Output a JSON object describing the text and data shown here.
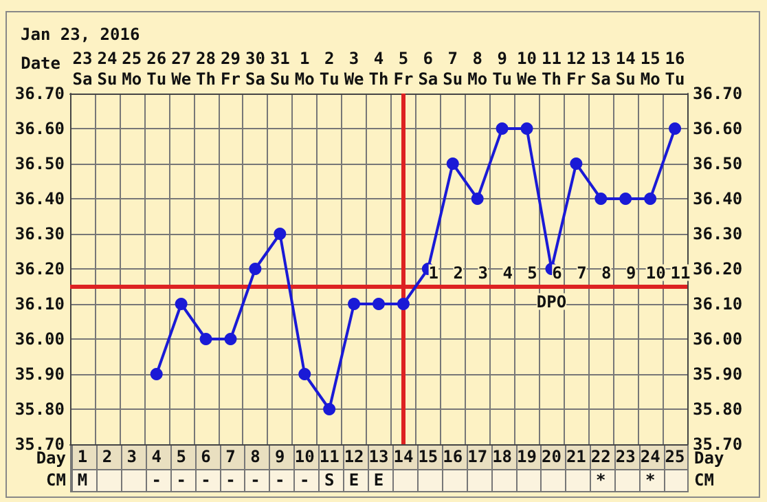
{
  "chart_data": [
    {
      "type": "line",
      "title": "Jan 23, 2016",
      "xlabel": "Date",
      "x2label": "Day",
      "categories": [
        "23\nSa",
        "24\nSu",
        "25\nMo",
        "26\nTu",
        "27\nWe",
        "28\nTh",
        "29\nFr",
        "30\nSa",
        "31\nSu",
        "1\nMo",
        "2\nTu",
        "3\nWe",
        "4\nTh",
        "5\nFr",
        "6\nSa",
        "7\nSu",
        "8\nMo",
        "9\nTu",
        "10\nWe",
        "11\nTh",
        "12\nFr",
        "13\nSa",
        "14\nSu",
        "15\nMo",
        "16\nTu"
      ],
      "series": [
        {
          "color": "#1a1ad6",
          "values": [
            null,
            null,
            null,
            35.9,
            36.1,
            36.0,
            36.0,
            36.2,
            36.3,
            35.9,
            35.8,
            36.1,
            36.1,
            36.1,
            36.2,
            36.5,
            36.4,
            36.6,
            36.6,
            36.2,
            36.5,
            36.4,
            36.4,
            36.4,
            36.6
          ]
        }
      ],
      "ylim": [
        35.7,
        36.7
      ],
      "yticks": [
        {
          "value": 35.7,
          "label": "35.70"
        },
        {
          "value": 35.8,
          "label": "35.80"
        },
        {
          "value": 35.9,
          "label": "35.90"
        },
        {
          "value": 36.0,
          "label": "36.00"
        },
        {
          "value": 36.1,
          "label": "36.10"
        },
        {
          "value": 36.2,
          "label": "36.20"
        },
        {
          "value": 36.3,
          "label": "36.30"
        },
        {
          "value": 36.4,
          "label": "36.40"
        },
        {
          "value": 36.5,
          "label": "36.50"
        },
        {
          "value": 36.6,
          "label": "36.60"
        },
        {
          "value": 36.7,
          "label": "36.70"
        }
      ],
      "y2lim": [
        35.7,
        36.7
      ],
      "y2ticks": [
        {
          "value": 35.7,
          "label": "35.70"
        },
        {
          "value": 35.8,
          "label": "35.80"
        },
        {
          "value": 35.9,
          "label": "35.90"
        },
        {
          "value": 36.0,
          "label": "36.00"
        },
        {
          "value": 36.1,
          "label": "36.10"
        },
        {
          "value": 36.2,
          "label": "36.20"
        },
        {
          "value": 36.3,
          "label": "36.30"
        },
        {
          "value": 36.4,
          "label": "36.40"
        },
        {
          "value": 36.5,
          "label": "36.50"
        },
        {
          "value": 36.6,
          "label": "36.60"
        },
        {
          "value": 36.7,
          "label": "36.70"
        }
      ],
      "x2lim": [
        0.5,
        25.5
      ],
      "x2ticks": [
        1,
        2,
        3,
        4,
        5,
        6,
        7,
        8,
        9,
        10,
        11,
        12,
        13,
        14,
        15,
        16,
        17,
        18,
        19,
        20,
        21,
        22,
        23,
        24,
        25
      ],
      "ref_lines": [
        {
          "axis": "y",
          "value": 36.15,
          "color": "#dd2222"
        },
        {
          "axis": "x",
          "value": "5\nFr",
          "color": "#dd2222"
        }
      ],
      "annotations": [
        "1",
        "2",
        "3",
        "4",
        "5",
        "6",
        "7",
        "8",
        "9",
        "10",
        "11",
        "DPO"
      ],
      "grid": true,
      "marker": "circle",
      "line_style": "solid"
    },
    {
      "type": "other",
      "y_categories": [
        "CM"
      ],
      "y2_categories": [
        "CM"
      ],
      "cell_labels": [
        [
          "M",
          null,
          null,
          "-",
          "-",
          "-",
          "-",
          "-",
          "-",
          "-",
          "S",
          "E",
          "E",
          null,
          null,
          null,
          null,
          null,
          null,
          null,
          null,
          "*",
          null,
          "*",
          null
        ]
      ]
    }
  ]
}
